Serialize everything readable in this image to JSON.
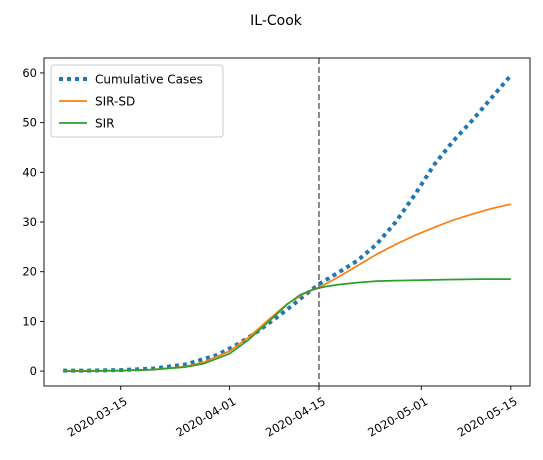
{
  "chart_data": {
    "type": "line",
    "title": "IL-Cook",
    "xlabel": "",
    "ylabel": "",
    "x_ticks": [
      "2020-03-15",
      "2020-04-01",
      "2020-04-15",
      "2020-05-01",
      "2020-05-15"
    ],
    "y_ticks": [
      0,
      10,
      20,
      30,
      40,
      50,
      60
    ],
    "xlim": [
      "2020-03-03",
      "2020-05-18"
    ],
    "ylim": [
      -3,
      63
    ],
    "grid": false,
    "legend_position": "upper-left",
    "vertical_line": {
      "x": "2020-04-15",
      "style": "dashed",
      "color": "#707070"
    },
    "series": [
      {
        "name": "Cumulative Cases",
        "color": "#1f77b4",
        "style": "dotted",
        "x": [
          "2020-03-06",
          "2020-03-10",
          "2020-03-15",
          "2020-03-20",
          "2020-03-25",
          "2020-03-30",
          "2020-04-02",
          "2020-04-05",
          "2020-04-08",
          "2020-04-11",
          "2020-04-13",
          "2020-04-15",
          "2020-04-18",
          "2020-04-21",
          "2020-04-24",
          "2020-04-27",
          "2020-04-30",
          "2020-05-03",
          "2020-05-06",
          "2020-05-09",
          "2020-05-12",
          "2020-05-15"
        ],
        "values": [
          0.1,
          0.1,
          0.2,
          0.5,
          1.3,
          3.2,
          5.2,
          7.6,
          10.4,
          13.4,
          15.5,
          17.5,
          19.8,
          22.2,
          25.5,
          30.0,
          35.5,
          41.5,
          46.3,
          50.5,
          55.0,
          59.5
        ]
      },
      {
        "name": "SIR-SD",
        "color": "#ff7f0e",
        "style": "solid",
        "x": [
          "2020-03-06",
          "2020-03-10",
          "2020-03-15",
          "2020-03-20",
          "2020-03-25",
          "2020-03-28",
          "2020-04-01",
          "2020-04-04",
          "2020-04-07",
          "2020-04-10",
          "2020-04-13",
          "2020-04-15",
          "2020-04-18",
          "2020-04-21",
          "2020-04-24",
          "2020-04-27",
          "2020-04-30",
          "2020-05-03",
          "2020-05-06",
          "2020-05-09",
          "2020-05-12",
          "2020-05-15"
        ],
        "values": [
          0.0,
          0.1,
          0.1,
          0.3,
          0.9,
          1.8,
          4.0,
          6.8,
          10.2,
          13.5,
          15.8,
          16.8,
          18.9,
          21.2,
          23.5,
          25.5,
          27.3,
          28.9,
          30.4,
          31.6,
          32.7,
          33.6
        ]
      },
      {
        "name": "SIR",
        "color": "#2ca02c",
        "style": "solid",
        "x": [
          "2020-03-06",
          "2020-03-10",
          "2020-03-15",
          "2020-03-20",
          "2020-03-25",
          "2020-03-28",
          "2020-04-01",
          "2020-04-04",
          "2020-04-07",
          "2020-04-10",
          "2020-04-12",
          "2020-04-14",
          "2020-04-16",
          "2020-04-18",
          "2020-04-21",
          "2020-04-24",
          "2020-04-27",
          "2020-05-01",
          "2020-05-05",
          "2020-05-10",
          "2020-05-15"
        ],
        "values": [
          0.0,
          0.0,
          0.1,
          0.3,
          0.8,
          1.5,
          3.5,
          6.3,
          9.8,
          13.4,
          15.3,
          16.4,
          17.0,
          17.4,
          17.8,
          18.1,
          18.2,
          18.3,
          18.4,
          18.5,
          18.5
        ]
      }
    ]
  }
}
